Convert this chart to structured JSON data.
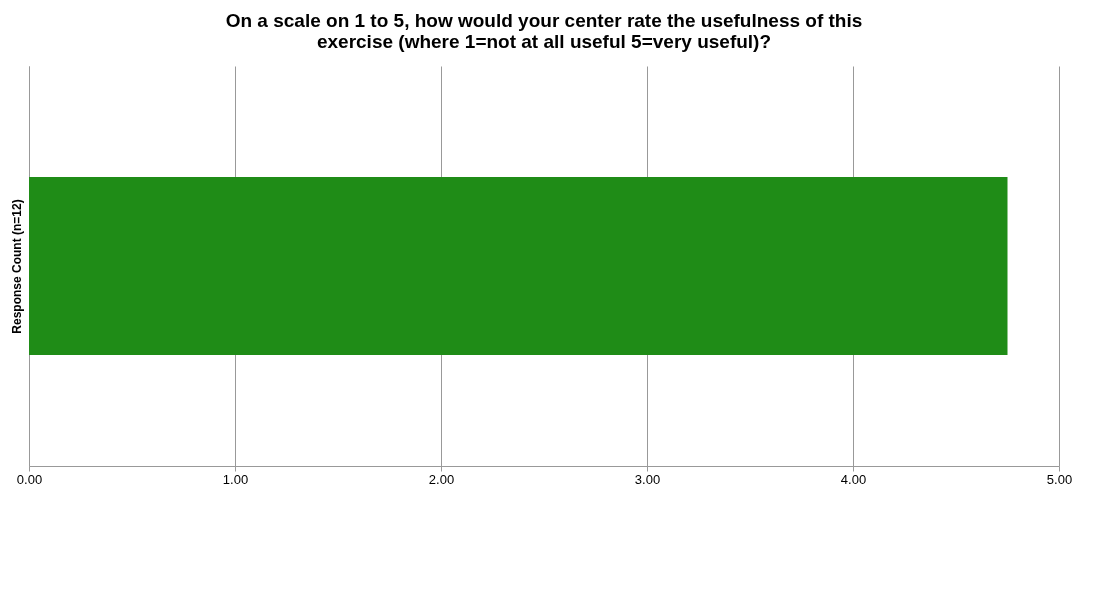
{
  "chart_data": {
    "type": "bar",
    "orientation": "horizontal",
    "title": [
      "On a scale on 1 to 5, how would your center rate the usefulness of this",
      "exercise (where 1=not at all useful 5=very useful)?"
    ],
    "ylabel": "Response Count (n=12)",
    "categories": [
      null
    ],
    "values": [
      4.75
    ],
    "color": "#1f8c17",
    "xlim": [
      0,
      5
    ],
    "xticks": [
      {
        "value": 0,
        "label": "0.00"
      },
      {
        "value": 1,
        "label": "1.00"
      },
      {
        "value": 2,
        "label": "2.00"
      },
      {
        "value": 3,
        "label": "3.00"
      },
      {
        "value": 4,
        "label": "4.00"
      },
      {
        "value": 5,
        "label": "5.00"
      }
    ],
    "grid": "x"
  }
}
